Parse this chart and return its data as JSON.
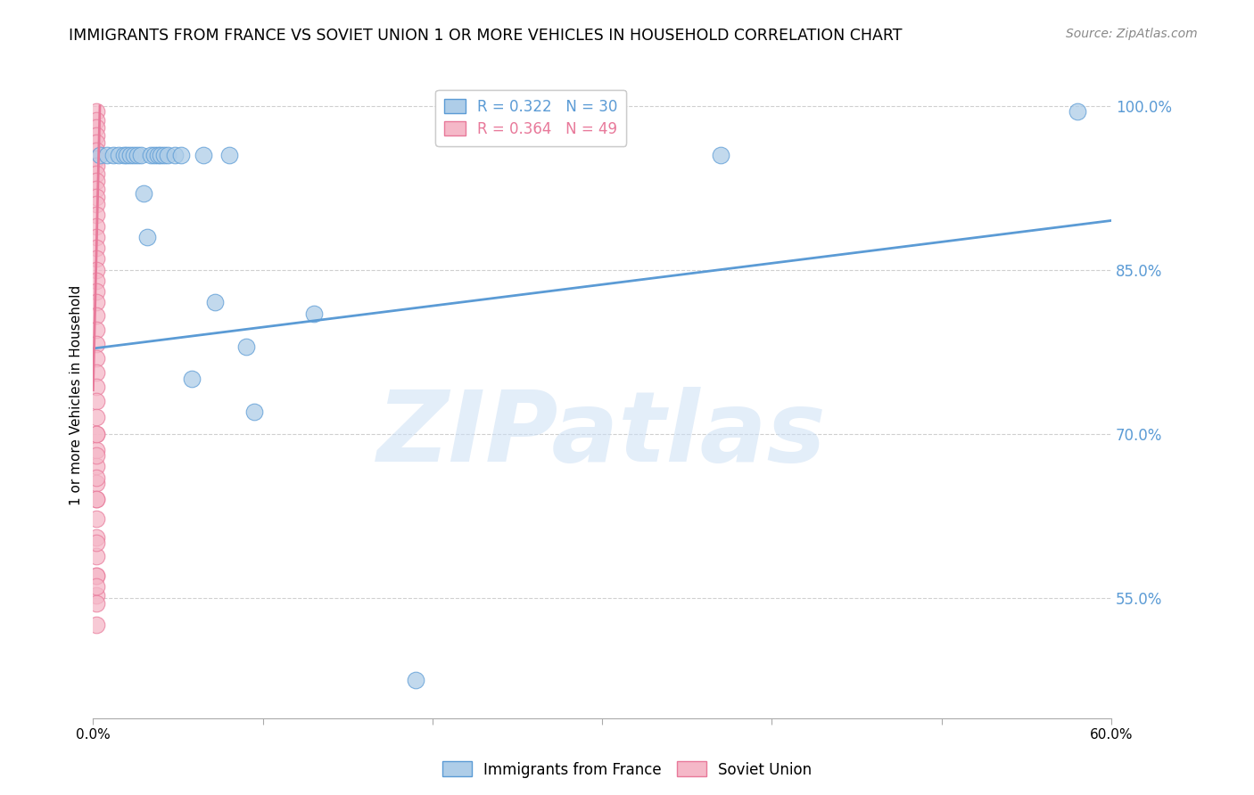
{
  "title": "IMMIGRANTS FROM FRANCE VS SOVIET UNION 1 OR MORE VEHICLES IN HOUSEHOLD CORRELATION CHART",
  "source": "Source: ZipAtlas.com",
  "ylabel": "1 or more Vehicles in Household",
  "watermark": "ZIPatlas",
  "xlim": [
    0.0,
    0.6
  ],
  "ylim": [
    0.44,
    1.03
  ],
  "ytick_vals": [
    0.55,
    0.7,
    0.85,
    1.0
  ],
  "ytick_labels": [
    "55.0%",
    "70.0%",
    "85.0%",
    "100.0%"
  ],
  "xtick_vals": [
    0.0,
    0.1,
    0.2,
    0.3,
    0.4,
    0.5,
    0.6
  ],
  "xtick_labels": [
    "0.0%",
    "",
    "",
    "",
    "",
    "",
    "60.0%"
  ],
  "france_R": 0.322,
  "france_N": 30,
  "soviet_R": 0.364,
  "soviet_N": 49,
  "france_color": "#aecde8",
  "soviet_color": "#f5b8c8",
  "france_edge_color": "#5b9bd5",
  "soviet_edge_color": "#e8799a",
  "france_line_color": "#5b9bd5",
  "soviet_line_color": "#e8799a",
  "legend_france": "Immigrants from France",
  "legend_soviet": "Soviet Union",
  "france_x": [
    0.004,
    0.008,
    0.012,
    0.015,
    0.018,
    0.02,
    0.022,
    0.024,
    0.026,
    0.028,
    0.03,
    0.032,
    0.034,
    0.036,
    0.038,
    0.04,
    0.042,
    0.044,
    0.048,
    0.052,
    0.058,
    0.065,
    0.072,
    0.08,
    0.09,
    0.095,
    0.13,
    0.19,
    0.37,
    0.58
  ],
  "france_y": [
    0.955,
    0.955,
    0.955,
    0.955,
    0.955,
    0.955,
    0.955,
    0.955,
    0.955,
    0.955,
    0.92,
    0.88,
    0.955,
    0.955,
    0.955,
    0.955,
    0.955,
    0.955,
    0.955,
    0.955,
    0.75,
    0.955,
    0.82,
    0.955,
    0.78,
    0.72,
    0.81,
    0.475,
    0.955,
    0.995
  ],
  "soviet_x": [
    0.002,
    0.002,
    0.002,
    0.002,
    0.002,
    0.002,
    0.002,
    0.002,
    0.002,
    0.002,
    0.002,
    0.002,
    0.002,
    0.002,
    0.002,
    0.002,
    0.002,
    0.002,
    0.002,
    0.002,
    0.002,
    0.002,
    0.002,
    0.002,
    0.002,
    0.002,
    0.002,
    0.002,
    0.002,
    0.002,
    0.002,
    0.002,
    0.002,
    0.002,
    0.002,
    0.002,
    0.002,
    0.002,
    0.002,
    0.002,
    0.002,
    0.002,
    0.002,
    0.002,
    0.002,
    0.002,
    0.002,
    0.002,
    0.002
  ],
  "soviet_y": [
    0.995,
    0.987,
    0.98,
    0.973,
    0.966,
    0.959,
    0.952,
    0.945,
    0.938,
    0.931,
    0.924,
    0.917,
    0.91,
    0.9,
    0.89,
    0.88,
    0.87,
    0.86,
    0.85,
    0.84,
    0.83,
    0.82,
    0.808,
    0.795,
    0.782,
    0.769,
    0.756,
    0.743,
    0.73,
    0.715,
    0.7,
    0.685,
    0.67,
    0.655,
    0.64,
    0.622,
    0.605,
    0.588,
    0.57,
    0.552,
    0.6,
    0.57,
    0.545,
    0.525,
    0.56,
    0.64,
    0.66,
    0.68,
    0.7
  ],
  "france_trend": [
    0.0,
    0.6,
    0.778,
    0.895
  ],
  "title_fontsize": 12.5,
  "axis_label_fontsize": 11,
  "tick_fontsize": 11,
  "legend_fontsize": 12,
  "right_tick_color": "#5b9bd5",
  "source_color": "#888888",
  "grid_color": "#d0d0d0"
}
